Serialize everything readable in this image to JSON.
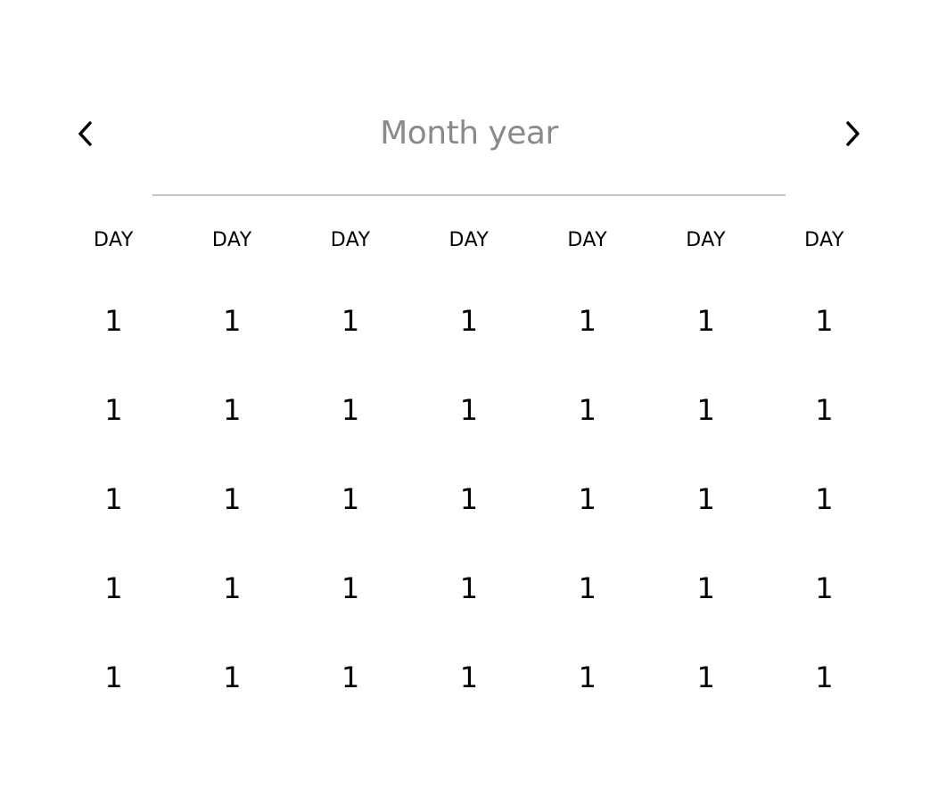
{
  "header": {
    "title": "Month year",
    "prev_icon": "chevron-left-icon",
    "next_icon": "chevron-right-icon"
  },
  "weekdays": [
    "DAY",
    "DAY",
    "DAY",
    "DAY",
    "DAY",
    "DAY",
    "DAY"
  ],
  "weeks": [
    [
      "1",
      "1",
      "1",
      "1",
      "1",
      "1",
      "1"
    ],
    [
      "1",
      "1",
      "1",
      "1",
      "1",
      "1",
      "1"
    ],
    [
      "1",
      "1",
      "1",
      "1",
      "1",
      "1",
      "1"
    ],
    [
      "1",
      "1",
      "1",
      "1",
      "1",
      "1",
      "1"
    ],
    [
      "1",
      "1",
      "1",
      "1",
      "1",
      "1",
      "1"
    ]
  ],
  "colors": {
    "title": "#8a8a8a",
    "divider": "#c4c4c4",
    "text": "#000000"
  }
}
